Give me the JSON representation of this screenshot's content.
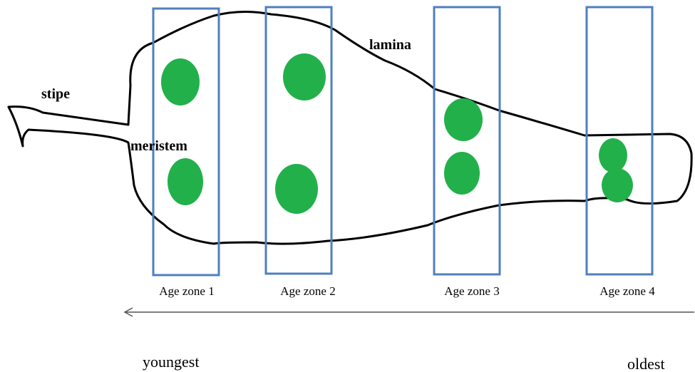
{
  "labels": {
    "stipe": "stipe",
    "lamina": "lamina",
    "meristem": "meristem"
  },
  "zones": [
    "Age zone 1",
    "Age zone 2",
    "Age zone 3",
    "Age zone 4"
  ],
  "axis": {
    "start": "youngest",
    "end": "oldest"
  }
}
